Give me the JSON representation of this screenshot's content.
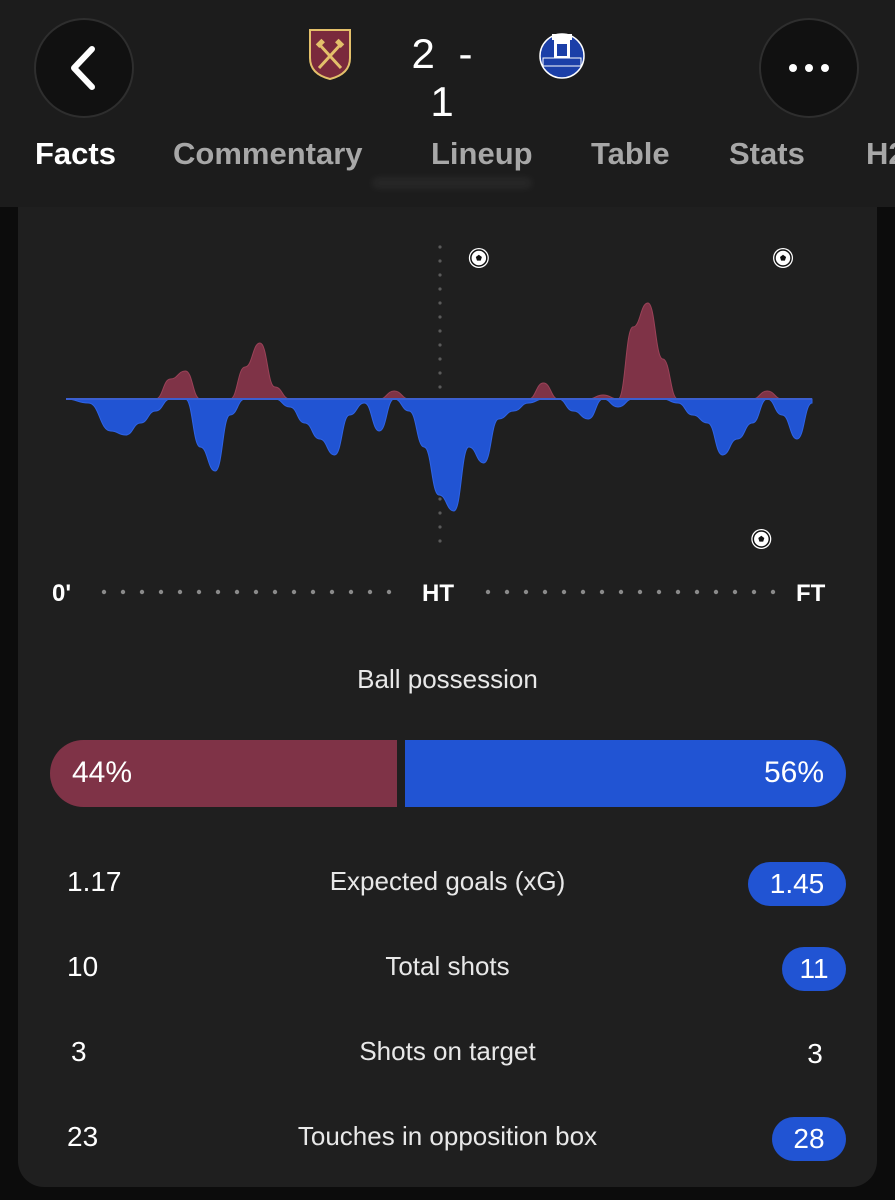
{
  "match": {
    "home_team_crest": "west-ham-crest",
    "away_team_crest": "everton-crest",
    "score": "2 - 1"
  },
  "tabs": [
    "Facts",
    "Commentary",
    "Lineup",
    "Table",
    "Stats",
    "H2"
  ],
  "active_tab": "Facts",
  "chart_data": {
    "type": "area",
    "title": "",
    "x_labels": [
      "0'",
      "HT",
      "FT"
    ],
    "home_color": "#7f3347",
    "away_color": "#2154d3",
    "series": [
      {
        "x": [
          0,
          3,
          6,
          8,
          10,
          12,
          14,
          16,
          18,
          20,
          22,
          24,
          26,
          28,
          30,
          32,
          34,
          36,
          38,
          40,
          42,
          44,
          46,
          48,
          50,
          52,
          54,
          56,
          58,
          60,
          62,
          64,
          66,
          68,
          70,
          72,
          74,
          76,
          78,
          80,
          82,
          84,
          86,
          88,
          90,
          92,
          94,
          96,
          98,
          100
        ],
        "values": [
          0,
          -1,
          -8,
          -9,
          -6,
          -3,
          5,
          7,
          -12,
          -18,
          -4,
          8,
          14,
          3,
          -2,
          -6,
          -10,
          -14,
          -4,
          -1,
          -8,
          2,
          -3,
          -12,
          -24,
          -28,
          -12,
          -16,
          -5,
          -3,
          -1,
          4,
          0,
          -3,
          -5,
          1,
          -2,
          18,
          24,
          10,
          -1,
          -4,
          -6,
          -14,
          -10,
          -6,
          2,
          -4,
          -10,
          -1
        ]
      }
    ],
    "goal_markers": [
      {
        "team": "home",
        "minute": 57
      },
      {
        "team": "home",
        "minute": 99
      },
      {
        "team": "away",
        "minute": 96
      }
    ]
  },
  "possession": {
    "title": "Ball possession",
    "home": 44,
    "away": 56,
    "home_label": "44%",
    "away_label": "56%"
  },
  "stats": [
    {
      "name": "Expected goals (xG)",
      "home": "1.17",
      "away": "1.45",
      "away_highlight": true
    },
    {
      "name": "Total shots",
      "home": "10",
      "away": "11",
      "away_highlight": true
    },
    {
      "name": "Shots on target",
      "home": "3",
      "away": "3",
      "away_highlight": false
    },
    {
      "name": "Touches in opposition box",
      "home": "23",
      "away": "28",
      "away_highlight": true
    }
  ]
}
